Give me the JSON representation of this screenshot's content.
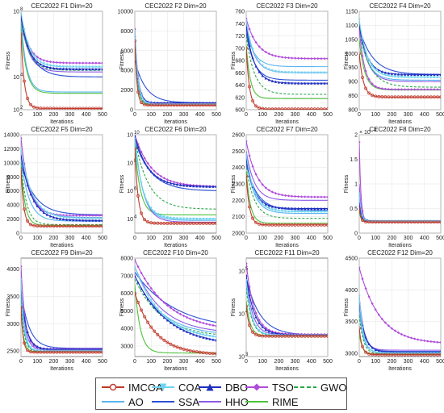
{
  "chart_data": {
    "type": "line",
    "legend_placement": "bottom",
    "algorithms": [
      {
        "name": "IMCOA",
        "color": "#c0392b",
        "style": "solid",
        "marker": "circle"
      },
      {
        "name": "COA",
        "color": "#6fd3f0",
        "style": "solid",
        "marker": "triangle-down"
      },
      {
        "name": "DBO",
        "color": "#1f2fbf",
        "style": "solid",
        "marker": "triangle-up"
      },
      {
        "name": "TSO",
        "color": "#b04bdb",
        "style": "solid",
        "marker": "diamond"
      },
      {
        "name": "GWO",
        "color": "#2aa84a",
        "style": "dashed",
        "marker": "none"
      },
      {
        "name": "AO",
        "color": "#5ab4f0",
        "style": "solid",
        "marker": "none"
      },
      {
        "name": "SSA",
        "color": "#2b4fd6",
        "style": "solid",
        "marker": "none"
      },
      {
        "name": "HHO",
        "color": "#8e5ae6",
        "style": "solid",
        "marker": "none"
      },
      {
        "name": "RIME",
        "color": "#4cc23a",
        "style": "solid",
        "marker": "none"
      }
    ],
    "panels": [
      {
        "title": "CEC2022 F1 Dim=20",
        "xlabel": "Iterations",
        "ylabel": "Fitness",
        "xlim": [
          0,
          500
        ],
        "xticks": [
          0,
          100,
          200,
          300,
          400,
          500
        ],
        "yscale": "log",
        "ylim": [
          100,
          100000000
        ],
        "yticks": [
          {
            "v": 100,
            "t": "10"
          },
          {
            "v": 10000,
            "t": "10"
          },
          {
            "v": 100000000,
            "t": "10"
          }
        ],
        "ytick_exponents": [
          "2",
          "4",
          "8"
        ],
        "y_exponent": "",
        "final": [
          120,
          40000,
          30000,
          70000,
          25000,
          1200,
          10000,
          20000,
          1000
        ],
        "start": [
          4000000,
          100000000,
          50000000,
          40000000,
          30000000,
          30000000,
          30000000,
          30000000,
          10000000
        ],
        "decay": [
          0.05,
          0.02,
          0.02,
          0.02,
          0.02,
          0.03,
          0.015,
          0.02,
          0.03
        ]
      },
      {
        "title": "CEC2022 F2 Dim=20",
        "xlabel": "Iterations",
        "ylabel": "Fitness",
        "xlim": [
          0,
          500
        ],
        "xticks": [
          0,
          100,
          200,
          300,
          400,
          500
        ],
        "yscale": "linear",
        "ylim": [
          0,
          10000
        ],
        "yticks": [
          {
            "v": 0,
            "t": "0"
          },
          {
            "v": 2000,
            "t": "2000"
          },
          {
            "v": 4000,
            "t": "4000"
          },
          {
            "v": 6000,
            "t": "6000"
          },
          {
            "v": 8000,
            "t": "8000"
          },
          {
            "v": 10000,
            "t": "10000"
          }
        ],
        "ytick_exponents": [],
        "y_exponent": "",
        "final": [
          460,
          520,
          700,
          650,
          560,
          540,
          700,
          520,
          480
        ],
        "start": [
          7000,
          8000,
          7500,
          8200,
          7000,
          7200,
          5000,
          7800,
          6500
        ],
        "decay": [
          0.08,
          0.05,
          0.05,
          0.05,
          0.06,
          0.06,
          0.015,
          0.05,
          0.06
        ]
      },
      {
        "title": "CEC2022 F3 Dim=20",
        "xlabel": "Iterations",
        "ylabel": "Fitness",
        "xlim": [
          0,
          500
        ],
        "xticks": [
          0,
          100,
          200,
          300,
          400,
          500
        ],
        "yscale": "linear",
        "ylim": [
          600,
          760
        ],
        "yticks": [
          {
            "v": 600,
            "t": "600"
          },
          {
            "v": 620,
            "t": "620"
          },
          {
            "v": 640,
            "t": "640"
          },
          {
            "v": 660,
            "t": "660"
          },
          {
            "v": 680,
            "t": "680"
          },
          {
            "v": 700,
            "t": "700"
          },
          {
            "v": 720,
            "t": "720"
          },
          {
            "v": 740,
            "t": "740"
          },
          {
            "v": 760,
            "t": "760"
          }
        ],
        "ytick_exponents": [],
        "y_exponent": "",
        "final": [
          601,
          660,
          643,
          683,
          625,
          670,
          648,
          660,
          618
        ],
        "start": [
          700,
          745,
          735,
          748,
          720,
          730,
          725,
          740,
          705
        ],
        "decay": [
          0.05,
          0.02,
          0.02,
          0.015,
          0.02,
          0.02,
          0.02,
          0.02,
          0.04
        ]
      },
      {
        "title": "CEC2022 F4 Dim=20",
        "xlabel": "Iterations",
        "ylabel": "Fitness",
        "xlim": [
          0,
          500
        ],
        "xticks": [
          0,
          100,
          200,
          300,
          400,
          500
        ],
        "yscale": "linear",
        "ylim": [
          800,
          1150
        ],
        "yticks": [
          {
            "v": 800,
            "t": "800"
          },
          {
            "v": 850,
            "t": "850"
          },
          {
            "v": 900,
            "t": "900"
          },
          {
            "v": 950,
            "t": "950"
          },
          {
            "v": 1000,
            "t": "1000"
          },
          {
            "v": 1050,
            "t": "1050"
          },
          {
            "v": 1100,
            "t": "1100"
          },
          {
            "v": 1150,
            "t": "1150"
          }
        ],
        "ytick_exponents": [],
        "y_exponent": "",
        "final": [
          845,
          915,
          925,
          872,
          880,
          905,
          925,
          900,
          870
        ],
        "start": [
          1000,
          1120,
          1100,
          1090,
          1080,
          1100,
          1090,
          1100,
          1050
        ],
        "decay": [
          0.04,
          0.02,
          0.02,
          0.03,
          0.015,
          0.02,
          0.012,
          0.02,
          0.03
        ]
      },
      {
        "title": "CEC2022 F5 Dim=20",
        "xlabel": "Iterations",
        "ylabel": "Fitness",
        "xlim": [
          0,
          500
        ],
        "xticks": [
          0,
          100,
          200,
          300,
          400,
          500
        ],
        "yscale": "linear",
        "ylim": [
          0,
          14000
        ],
        "yticks": [
          {
            "v": 0,
            "t": "0"
          },
          {
            "v": 2000,
            "t": "2000"
          },
          {
            "v": 4000,
            "t": "4000"
          },
          {
            "v": 6000,
            "t": "6000"
          },
          {
            "v": 8000,
            "t": "8000"
          },
          {
            "v": 10000,
            "t": "10000"
          },
          {
            "v": 12000,
            "t": "12000"
          },
          {
            "v": 14000,
            "t": "14000"
          }
        ],
        "ytick_exponents": [],
        "y_exponent": "",
        "final": [
          1000,
          2100,
          1800,
          2500,
          1200,
          1700,
          2600,
          2200,
          1100
        ],
        "start": [
          9000,
          12000,
          11000,
          13500,
          10000,
          10500,
          10000,
          11000,
          9500
        ],
        "decay": [
          0.06,
          0.015,
          0.015,
          0.02,
          0.03,
          0.02,
          0.012,
          0.015,
          0.04
        ]
      },
      {
        "title": "CEC2022 F6 Dim=20",
        "xlabel": "Iterations",
        "ylabel": "Fitness",
        "xlim": [
          0,
          500
        ],
        "xticks": [
          0,
          100,
          200,
          300,
          400,
          500
        ],
        "yscale": "log",
        "ylim": [
          1000,
          10000000000
        ],
        "yticks": [
          {
            "v": 10000,
            "t": "10"
          },
          {
            "v": 1000000,
            "t": "10"
          },
          {
            "v": 100000000,
            "t": "10"
          },
          {
            "v": 10000000000,
            "t": "10"
          }
        ],
        "ytick_exponents": [
          "4",
          "6",
          "8",
          "10"
        ],
        "y_exponent": "",
        "final": [
          5000,
          10000,
          2000000,
          2000000,
          50000,
          8000,
          1000000,
          6000,
          20000
        ],
        "start": [
          1000000000,
          5000000000,
          8000000000,
          10000000000,
          5000000000,
          5000000000,
          4000000000,
          8000000000,
          2000000000
        ],
        "decay": [
          0.05,
          0.02,
          0.012,
          0.01,
          0.012,
          0.02,
          0.01,
          0.02,
          0.03
        ]
      },
      {
        "title": "CEC2022 F7 Dim=20",
        "xlabel": "Iterations",
        "ylabel": "Fitness",
        "xlim": [
          0,
          500
        ],
        "xticks": [
          0,
          100,
          200,
          300,
          400,
          500
        ],
        "yscale": "linear",
        "ylim": [
          2000,
          2600
        ],
        "yticks": [
          {
            "v": 2000,
            "t": "2000"
          },
          {
            "v": 2100,
            "t": "2100"
          },
          {
            "v": 2200,
            "t": "2200"
          },
          {
            "v": 2300,
            "t": "2300"
          },
          {
            "v": 2400,
            "t": "2400"
          },
          {
            "v": 2500,
            "t": "2500"
          },
          {
            "v": 2600,
            "t": "2600"
          }
        ],
        "ytick_exponents": [],
        "y_exponent": "",
        "final": [
          2050,
          2130,
          2150,
          2220,
          2090,
          2120,
          2140,
          2200,
          2060
        ],
        "start": [
          2350,
          2480,
          2450,
          2560,
          2400,
          2450,
          2420,
          2500,
          2380
        ],
        "decay": [
          0.05,
          0.02,
          0.02,
          0.015,
          0.02,
          0.02,
          0.015,
          0.02,
          0.04
        ]
      },
      {
        "title": "CEC2022 F8 Dim=20",
        "xlabel": "Iterations",
        "ylabel": "Fitness",
        "xlim": [
          0,
          500
        ],
        "xticks": [
          0,
          100,
          200,
          300,
          400,
          500
        ],
        "yscale": "linear",
        "ylim": [
          0,
          2
        ],
        "yticks": [
          {
            "v": 0,
            "t": "0"
          },
          {
            "v": 0.5,
            "t": "0.5"
          },
          {
            "v": 1,
            "t": "1"
          },
          {
            "v": 1.5,
            "t": "1.5"
          },
          {
            "v": 2,
            "t": "2"
          }
        ],
        "ytick_exponents": [],
        "y_exponent": "4",
        "final": [
          0.225,
          0.24,
          0.245,
          0.235,
          0.23,
          0.24,
          0.25,
          0.235,
          0.228
        ],
        "start": [
          0.5,
          0.8,
          0.6,
          1.85,
          0.5,
          0.7,
          0.6,
          1.0,
          0.45
        ],
        "decay": [
          0.1,
          0.08,
          0.08,
          0.1,
          0.08,
          0.08,
          0.06,
          0.08,
          0.1
        ]
      },
      {
        "title": "CEC2022 F9 Dim=20",
        "xlabel": "Iterations",
        "ylabel": "Fitness",
        "xlim": [
          0,
          500
        ],
        "xticks": [
          0,
          100,
          200,
          300,
          400,
          500
        ],
        "yscale": "linear",
        "ylim": [
          2400,
          4200
        ],
        "yticks": [
          {
            "v": 2500,
            "t": "2500"
          },
          {
            "v": 3000,
            "t": "3000"
          },
          {
            "v": 3500,
            "t": "3500"
          },
          {
            "v": 4000,
            "t": "4000"
          }
        ],
        "ytick_exponents": [],
        "y_exponent": "",
        "final": [
          2480,
          2500,
          2530,
          2540,
          2490,
          2500,
          2550,
          2520,
          2485
        ],
        "start": [
          3300,
          3800,
          3600,
          4050,
          3400,
          3500,
          3600,
          3700,
          3200
        ],
        "decay": [
          0.08,
          0.05,
          0.03,
          0.04,
          0.05,
          0.05,
          0.02,
          0.04,
          0.06
        ]
      },
      {
        "title": "CEC2022 F10 Dim=20",
        "xlabel": "Iterations",
        "ylabel": "Fitness",
        "xlim": [
          0,
          500
        ],
        "xticks": [
          0,
          100,
          200,
          300,
          400,
          500
        ],
        "yscale": "linear",
        "ylim": [
          2400,
          8000
        ],
        "yticks": [
          {
            "v": 3000,
            "t": "3000"
          },
          {
            "v": 4000,
            "t": "4000"
          },
          {
            "v": 5000,
            "t": "5000"
          },
          {
            "v": 6000,
            "t": "6000"
          },
          {
            "v": 7000,
            "t": "7000"
          },
          {
            "v": 8000,
            "t": "8000"
          }
        ],
        "ytick_exponents": [],
        "y_exponent": "",
        "final": [
          2500,
          3300,
          3000,
          3800,
          3500,
          3600,
          3900,
          3700,
          2600
        ],
        "start": [
          6000,
          7500,
          7000,
          7900,
          6800,
          7000,
          7200,
          7500,
          6500
        ],
        "decay": [
          0.008,
          0.006,
          0.005,
          0.005,
          0.006,
          0.006,
          0.004,
          0.006,
          0.03
        ]
      },
      {
        "title": "CEC2022 F11 Dim=20",
        "xlabel": "Iterations",
        "ylabel": "Fitness",
        "xlim": [
          0,
          500
        ],
        "xticks": [
          0,
          100,
          200,
          300,
          400,
          500
        ],
        "yscale": "log",
        "ylim": [
          1000,
          200000
        ],
        "yticks": [
          {
            "v": 1000,
            "t": "10"
          },
          {
            "v": 10000,
            "t": "10"
          },
          {
            "v": 100000,
            "t": "10"
          }
        ],
        "ytick_exponents": [
          "3",
          "4",
          "5"
        ],
        "y_exponent": "",
        "final": [
          3000,
          3100,
          3200,
          3300,
          3050,
          3100,
          3150,
          3200,
          3000
        ],
        "start": [
          15000,
          60000,
          80000,
          150000,
          40000,
          50000,
          70000,
          70000,
          20000
        ],
        "decay": [
          0.05,
          0.03,
          0.02,
          0.02,
          0.03,
          0.03,
          0.012,
          0.025,
          0.04
        ]
      },
      {
        "title": "CEC2022 F12 Dim=20",
        "xlabel": "Iterations",
        "ylabel": "Fitness",
        "xlim": [
          0,
          500
        ],
        "xticks": [
          0,
          100,
          200,
          300,
          400,
          500
        ],
        "yscale": "linear",
        "ylim": [
          2950,
          4500
        ],
        "yticks": [
          {
            "v": 3000,
            "t": "3000"
          },
          {
            "v": 3500,
            "t": "3500"
          },
          {
            "v": 4000,
            "t": "4000"
          },
          {
            "v": 4500,
            "t": "4500"
          }
        ],
        "ytick_exponents": [],
        "y_exponent": "",
        "final": [
          2980,
          3000,
          3020,
          3150,
          2990,
          3010,
          3030,
          3050,
          2985
        ],
        "start": [
          3400,
          3900,
          3800,
          4350,
          3600,
          3700,
          3700,
          3900,
          3300
        ],
        "decay": [
          0.06,
          0.04,
          0.03,
          0.008,
          0.04,
          0.04,
          0.03,
          0.035,
          0.05
        ]
      }
    ]
  }
}
